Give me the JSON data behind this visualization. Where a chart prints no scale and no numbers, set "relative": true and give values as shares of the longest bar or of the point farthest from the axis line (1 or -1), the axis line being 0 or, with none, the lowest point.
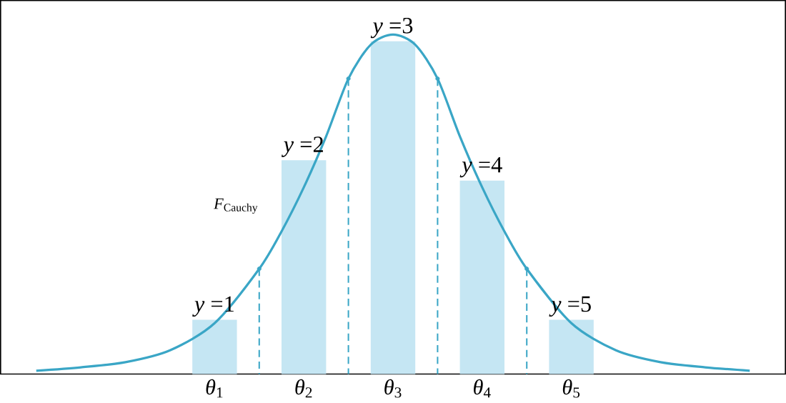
{
  "chart_data": {
    "type": "bar",
    "relative": true,
    "xlim": [
      -1.4,
      7.4
    ],
    "xticks": [
      {
        "value": 1,
        "label": "*θ*$_{1}$"
      },
      {
        "value": 2,
        "label": "*θ*$_{2}$"
      },
      {
        "value": 3,
        "label": "*θ*$_{3}$"
      },
      {
        "value": 4,
        "label": "*θ*$_{4}$"
      },
      {
        "value": 5,
        "label": "*θ*$_{5}$"
      }
    ],
    "series": [
      {
        "color": "#c5e6f3",
        "x": [
          1,
          2,
          3,
          4,
          5
        ],
        "values": [
          0.16,
          0.63,
          0.98,
          0.57,
          0.16
        ]
      },
      {
        "type": "line",
        "color": "#3aa6c6",
        "x": [
          -1,
          -0.5,
          0,
          0.5,
          1,
          1.5,
          1.75,
          2,
          2.25,
          2.5,
          2.75,
          3,
          3.25,
          3.5,
          3.75,
          4,
          4.25,
          4.5,
          5,
          5.5,
          6,
          6.5,
          7
        ],
        "values": [
          0.01,
          0.02,
          0.035,
          0.07,
          0.15,
          0.31,
          0.42,
          0.55,
          0.7,
          0.87,
          0.97,
          1,
          0.97,
          0.87,
          0.7,
          0.55,
          0.42,
          0.31,
          0.15,
          0.07,
          0.035,
          0.02,
          0.01
        ]
      },
      {
        "type": "lollipop",
        "color": "#3aa6c6",
        "line_style": "dashed",
        "x": [
          1.5,
          2.5,
          3.5,
          4.5
        ],
        "values": [
          0.31,
          0.87,
          0.87,
          0.31
        ]
      }
    ],
    "annotations": [
      {
        "text": "*y* =1",
        "x": 1,
        "y": 0.16
      },
      {
        "text": "*y* =2",
        "x": 2,
        "y": 0.63
      },
      {
        "text": "*y* =3",
        "x": 3,
        "y": 0.98
      },
      {
        "text": "*y* =4",
        "x": 4,
        "y": 0.57
      },
      {
        "text": "*y* =5",
        "x": 5,
        "y": 0.16
      },
      "*F*$_{Cauchy}$"
    ]
  }
}
